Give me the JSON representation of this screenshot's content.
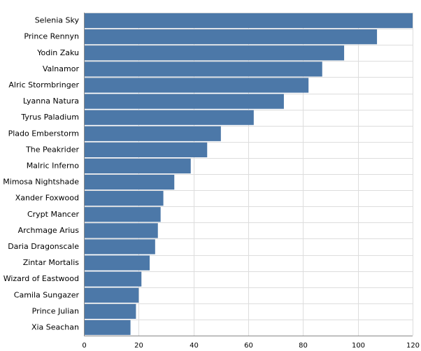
{
  "chart_data": {
    "type": "bar",
    "orientation": "horizontal",
    "title": "",
    "xlabel": "",
    "ylabel": "",
    "categories": [
      "Selenia Sky",
      "Prince Rennyn",
      "Yodin Zaku",
      "Valnamor",
      "Alric Stormbringer",
      "Lyanna Natura",
      "Tyrus Paladium",
      "Plado Emberstorm",
      "The Peakrider",
      "Malric Inferno",
      "Mimosa Nightshade",
      "Xander Foxwood",
      "Crypt Mancer",
      "Archmage Arius",
      "Daria Dragonscale",
      "Zintar Mortalis",
      "Wizard of Eastwood",
      "Camila Sungazer",
      "Prince Julian",
      "Xia Seachan"
    ],
    "values": [
      120,
      107,
      95,
      87,
      82,
      73,
      62,
      50,
      45,
      39,
      33,
      29,
      28,
      27,
      26,
      24,
      21,
      20,
      19,
      17
    ],
    "xlim": [
      0,
      120
    ],
    "xticks": [
      0,
      20,
      40,
      60,
      80,
      100,
      120
    ],
    "xtick_labels": [
      "0",
      "20",
      "40",
      "60",
      "80",
      "100",
      "120"
    ],
    "grid": true,
    "bar_color": "#4c78a8"
  }
}
